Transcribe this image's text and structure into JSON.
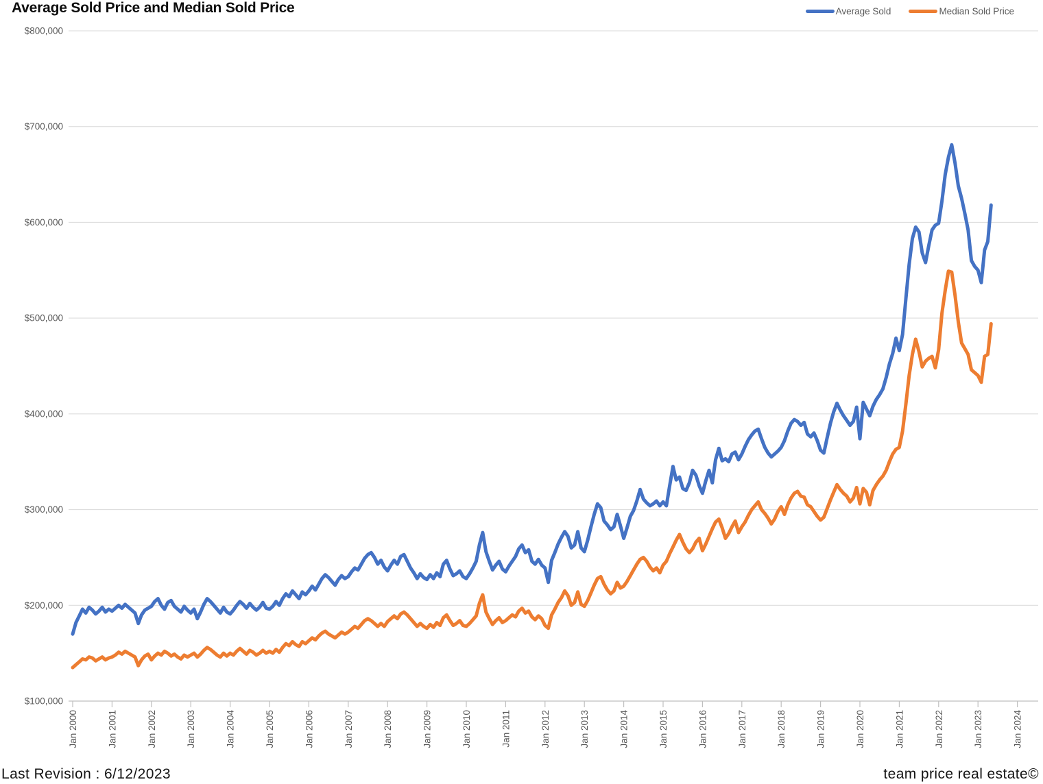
{
  "header": {
    "title": "Average Sold Price and Median Sold Price",
    "legend": [
      {
        "label": "Average Sold",
        "color": "#4472C4"
      },
      {
        "label": "Median Sold Price",
        "color": "#ED7D31"
      }
    ]
  },
  "footer": {
    "left": "Last Revision : 6/12/2023",
    "right": "team price real estate©"
  },
  "chart_data": {
    "type": "line",
    "title": "Average Sold Price and Median Sold Price",
    "xlabel": "",
    "ylabel": "",
    "frequency": "monthly",
    "x_start": "2000-01",
    "x_end": "2023-05",
    "ylim": [
      100000,
      800000
    ],
    "ytick_step": 100000,
    "grid": true,
    "legend_position": "top-right",
    "y_tick_labels": [
      "$800,000",
      "$700,000",
      "$600,000",
      "$500,000",
      "$400,000",
      "$300,000",
      "$200,000",
      "$100,000"
    ],
    "x_tick_labels": [
      "Jan 2000",
      "Jan 2001",
      "Jan 2002",
      "Jan 2003",
      "Jan 2004",
      "Jan 2005",
      "Jan 2006",
      "Jan 2007",
      "Jan 2008",
      "Jan 2009",
      "Jan 2010",
      "Jan 2011",
      "Jan 2012",
      "Jan 2013",
      "Jan 2014",
      "Jan 2015",
      "Jan 2016",
      "Jan 2017",
      "Jan 2018",
      "Jan 2019",
      "Jan 2020",
      "Jan 2021",
      "Jan 2022",
      "Jan 2023",
      "Jan 2024"
    ],
    "series": [
      {
        "name": "Average Sold",
        "color": "#4472C4",
        "values": [
          170000,
          182000,
          189000,
          196000,
          192000,
          198000,
          195000,
          191000,
          194000,
          198000,
          193000,
          196000,
          194000,
          197000,
          200000,
          197000,
          201000,
          198000,
          195000,
          192000,
          181000,
          190000,
          195000,
          197000,
          199000,
          204000,
          207000,
          200000,
          196000,
          203000,
          205000,
          199000,
          196000,
          193000,
          199000,
          195000,
          192000,
          196000,
          186000,
          193000,
          201000,
          207000,
          204000,
          200000,
          196000,
          192000,
          198000,
          193000,
          191000,
          195000,
          200000,
          204000,
          201000,
          197000,
          202000,
          198000,
          195000,
          198000,
          203000,
          197000,
          196000,
          199000,
          204000,
          200000,
          207000,
          212000,
          209000,
          215000,
          211000,
          207000,
          214000,
          211000,
          215000,
          220000,
          216000,
          222000,
          228000,
          232000,
          229000,
          225000,
          221000,
          227000,
          231000,
          228000,
          230000,
          235000,
          239000,
          237000,
          243000,
          249000,
          253000,
          255000,
          250000,
          243000,
          247000,
          240000,
          236000,
          242000,
          247000,
          243000,
          251000,
          253000,
          246000,
          239000,
          234000,
          228000,
          233000,
          229000,
          227000,
          232000,
          228000,
          234000,
          230000,
          243000,
          247000,
          238000,
          231000,
          233000,
          236000,
          230000,
          228000,
          233000,
          239000,
          246000,
          263000,
          276000,
          256000,
          246000,
          237000,
          242000,
          246000,
          238000,
          235000,
          241000,
          246000,
          251000,
          259000,
          263000,
          255000,
          258000,
          246000,
          243000,
          248000,
          242000,
          239000,
          224000,
          247000,
          255000,
          264000,
          271000,
          277000,
          272000,
          260000,
          263000,
          277000,
          260000,
          256000,
          268000,
          282000,
          295000,
          306000,
          302000,
          288000,
          284000,
          279000,
          282000,
          295000,
          283000,
          270000,
          281000,
          293000,
          299000,
          309000,
          321000,
          311000,
          307000,
          304000,
          306000,
          309000,
          304000,
          308000,
          304000,
          325000,
          345000,
          331000,
          334000,
          322000,
          320000,
          328000,
          341000,
          336000,
          325000,
          317000,
          330000,
          341000,
          328000,
          352000,
          364000,
          351000,
          353000,
          350000,
          358000,
          360000,
          352000,
          358000,
          366000,
          373000,
          378000,
          382000,
          384000,
          374000,
          365000,
          359000,
          355000,
          358000,
          361000,
          365000,
          372000,
          382000,
          390000,
          394000,
          392000,
          388000,
          391000,
          379000,
          376000,
          380000,
          372000,
          362000,
          359000,
          375000,
          390000,
          402000,
          411000,
          404000,
          398000,
          393000,
          388000,
          392000,
          407000,
          374000,
          412000,
          405000,
          398000,
          408000,
          415000,
          420000,
          426000,
          438000,
          452000,
          463000,
          479000,
          466000,
          483000,
          520000,
          556000,
          583000,
          595000,
          590000,
          568000,
          558000,
          576000,
          592000,
          597000,
          599000,
          622000,
          650000,
          668000,
          681000,
          662000,
          638000,
          625000,
          609000,
          592000,
          560000,
          554000,
          550000,
          537000,
          571000,
          580000,
          618000
        ]
      },
      {
        "name": "Median Sold Price",
        "color": "#ED7D31",
        "values": [
          135000,
          138000,
          141000,
          144000,
          143000,
          146000,
          145000,
          142000,
          144000,
          146000,
          143000,
          145000,
          146000,
          148000,
          151000,
          149000,
          152000,
          150000,
          148000,
          146000,
          137000,
          143000,
          147000,
          149000,
          143000,
          147000,
          150000,
          148000,
          152000,
          150000,
          147000,
          149000,
          146000,
          144000,
          148000,
          146000,
          148000,
          150000,
          146000,
          149000,
          153000,
          156000,
          154000,
          151000,
          148000,
          146000,
          150000,
          147000,
          150000,
          148000,
          152000,
          155000,
          152000,
          149000,
          153000,
          151000,
          148000,
          150000,
          153000,
          150000,
          152000,
          150000,
          154000,
          151000,
          156000,
          160000,
          158000,
          162000,
          159000,
          157000,
          162000,
          160000,
          163000,
          166000,
          164000,
          168000,
          171000,
          173000,
          170000,
          168000,
          166000,
          169000,
          172000,
          170000,
          172000,
          175000,
          178000,
          176000,
          180000,
          184000,
          186000,
          184000,
          181000,
          178000,
          181000,
          178000,
          183000,
          186000,
          189000,
          186000,
          191000,
          193000,
          190000,
          186000,
          182000,
          178000,
          181000,
          178000,
          176000,
          180000,
          177000,
          182000,
          179000,
          187000,
          190000,
          184000,
          179000,
          181000,
          184000,
          179000,
          178000,
          181000,
          185000,
          189000,
          202000,
          211000,
          193000,
          186000,
          180000,
          184000,
          187000,
          182000,
          184000,
          187000,
          190000,
          188000,
          194000,
          197000,
          192000,
          194000,
          188000,
          185000,
          189000,
          186000,
          179000,
          176000,
          190000,
          196000,
          203000,
          208000,
          215000,
          210000,
          200000,
          203000,
          214000,
          201000,
          199000,
          205000,
          213000,
          221000,
          228000,
          230000,
          222000,
          216000,
          212000,
          215000,
          224000,
          218000,
          220000,
          225000,
          231000,
          237000,
          243000,
          248000,
          250000,
          246000,
          240000,
          236000,
          239000,
          234000,
          242000,
          246000,
          254000,
          261000,
          268000,
          274000,
          266000,
          259000,
          255000,
          259000,
          266000,
          270000,
          257000,
          264000,
          272000,
          280000,
          287000,
          290000,
          281000,
          270000,
          275000,
          282000,
          288000,
          276000,
          282000,
          287000,
          294000,
          300000,
          304000,
          308000,
          300000,
          296000,
          291000,
          285000,
          290000,
          298000,
          303000,
          295000,
          305000,
          312000,
          317000,
          319000,
          314000,
          313000,
          305000,
          303000,
          298000,
          293000,
          289000,
          292000,
          301000,
          310000,
          318000,
          326000,
          321000,
          317000,
          314000,
          308000,
          312000,
          323000,
          306000,
          322000,
          318000,
          305000,
          320000,
          326000,
          331000,
          335000,
          341000,
          350000,
          358000,
          363000,
          365000,
          382000,
          410000,
          440000,
          462000,
          478000,
          465000,
          449000,
          455000,
          458000,
          460000,
          448000,
          467000,
          505000,
          529000,
          549000,
          548000,
          524000,
          496000,
          474000,
          468000,
          462000,
          446000,
          443000,
          440000,
          433000,
          460000,
          462000,
          494000
        ]
      }
    ]
  }
}
